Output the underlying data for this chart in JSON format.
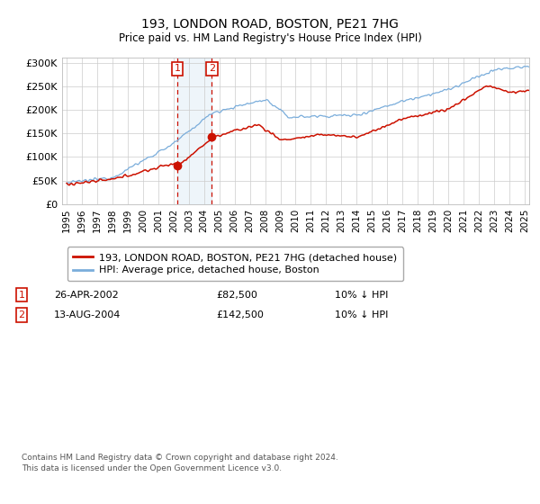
{
  "title": "193, LONDON ROAD, BOSTON, PE21 7HG",
  "subtitle": "Price paid vs. HM Land Registry's House Price Index (HPI)",
  "ylabel_ticks": [
    "£0",
    "£50K",
    "£100K",
    "£150K",
    "£200K",
    "£250K",
    "£300K"
  ],
  "ytick_values": [
    0,
    50000,
    100000,
    150000,
    200000,
    250000,
    300000
  ],
  "ylim": [
    0,
    310000
  ],
  "hpi_color": "#7aaddb",
  "price_color": "#cc1100",
  "sale1_year": 2002.29,
  "sale2_year": 2004.58,
  "sale1_price": 82500,
  "sale2_price": 142500,
  "marker1_label": "26-APR-2002",
  "marker1_price": "£82,500",
  "marker1_pct": "10% ↓ HPI",
  "marker2_label": "13-AUG-2004",
  "marker2_price": "£142,500",
  "marker2_pct": "10% ↓ HPI",
  "legend_line1": "193, LONDON ROAD, BOSTON, PE21 7HG (detached house)",
  "legend_line2": "HPI: Average price, detached house, Boston",
  "footnote": "Contains HM Land Registry data © Crown copyright and database right 2024.\nThis data is licensed under the Open Government Licence v3.0.",
  "background_color": "#ffffff",
  "grid_color": "#cccccc",
  "box_color": "#cc1100",
  "xtick_start": 1995,
  "xtick_end": 2025
}
